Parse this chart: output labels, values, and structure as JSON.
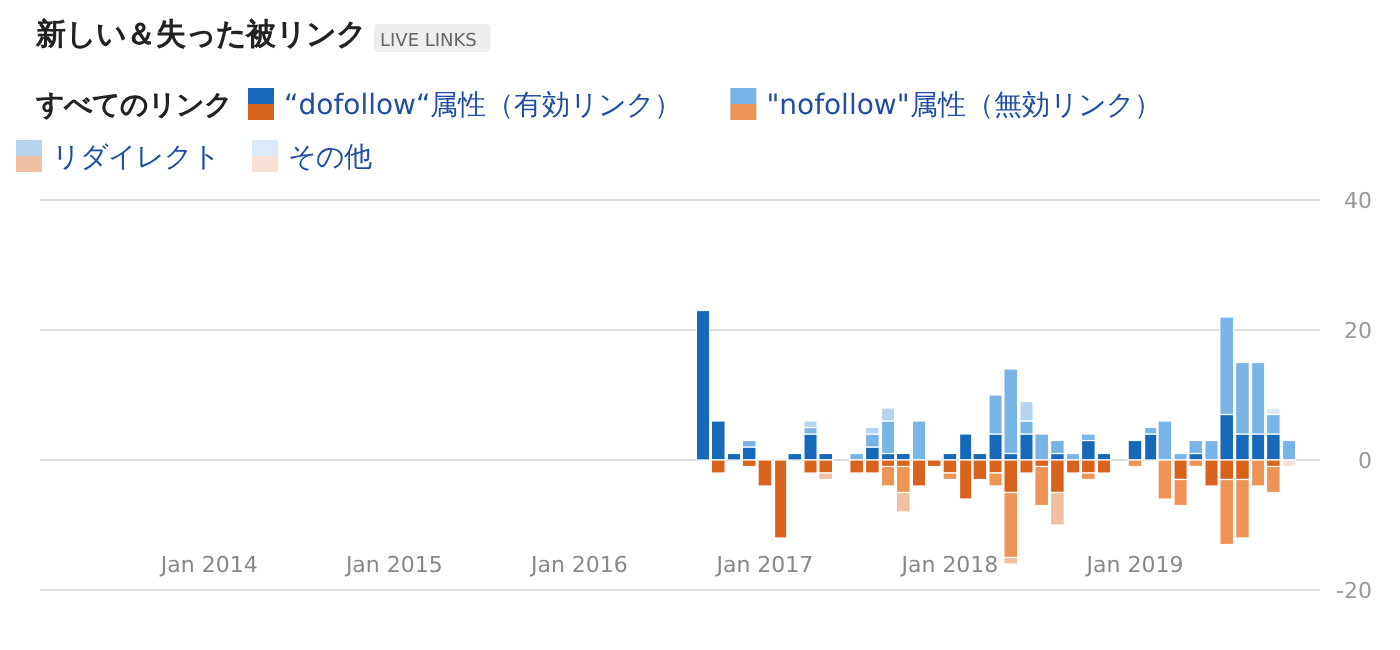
{
  "chart_data": {
    "type": "bar",
    "title": "新しい＆失った被リンク",
    "subtitle": "LIVE LINKS",
    "legend_title": "すべてのリンク",
    "legend": "top left",
    "stacked": true,
    "grid": "y",
    "x": [
      "2016-09",
      "2016-10",
      "2016-11",
      "2016-12",
      "2017-01",
      "2017-02",
      "2017-03",
      "2017-04",
      "2017-05",
      "2017-06",
      "2017-07",
      "2017-08",
      "2017-09",
      "2017-10",
      "2017-11",
      "2017-12",
      "2018-01",
      "2018-02",
      "2018-03",
      "2018-04",
      "2018-05",
      "2018-06",
      "2018-07",
      "2018-08",
      "2018-09",
      "2018-10",
      "2018-11",
      "2018-12",
      "2019-01",
      "2019-02",
      "2019-03",
      "2019-04",
      "2019-05",
      "2019-06",
      "2019-07",
      "2019-08",
      "2019-09",
      "2019-10",
      "2019-11"
    ],
    "xlim": [
      "2013-02",
      "2020-01"
    ],
    "xticks": [
      {
        "value": "2014-01",
        "label": "Jan 2014"
      },
      {
        "value": "2015-01",
        "label": "Jan 2015"
      },
      {
        "value": "2016-01",
        "label": "Jan 2016"
      },
      {
        "value": "2017-01",
        "label": "Jan 2017"
      },
      {
        "value": "2018-01",
        "label": "Jan 2018"
      },
      {
        "value": "2019-01",
        "label": "Jan 2019"
      }
    ],
    "ylim": [
      -20,
      40
    ],
    "yticks": [
      -20,
      0,
      20,
      40
    ],
    "series": [
      {
        "name": "“dofollow“属性（有効リンク）",
        "color": "#1668b8",
        "values": [
          23,
          6,
          1,
          2,
          0,
          0,
          1,
          4,
          1,
          0,
          0,
          2,
          1,
          1,
          0,
          0,
          1,
          4,
          1,
          4,
          1,
          4,
          0,
          1,
          0,
          3,
          1,
          0,
          3,
          4,
          0,
          0,
          1,
          0,
          7,
          4,
          4,
          4,
          0
        ]
      },
      {
        "name": "\"nofollow\"属性（無効リンク）",
        "color": "#79b4e6",
        "values": [
          0,
          0,
          0,
          1,
          0,
          0,
          0,
          1,
          0,
          0,
          1,
          2,
          5,
          0,
          6,
          0,
          0,
          0,
          0,
          6,
          13,
          2,
          4,
          2,
          1,
          1,
          0,
          0,
          0,
          1,
          6,
          1,
          2,
          3,
          15,
          11,
          11,
          3,
          3
        ]
      },
      {
        "name": "リダイレクト",
        "color": "#b5d4ef",
        "values": [
          0,
          0,
          0,
          0,
          0,
          0,
          0,
          1,
          0,
          0,
          0,
          1,
          2,
          0,
          0,
          0,
          0,
          0,
          0,
          0,
          0,
          3,
          0,
          0,
          0,
          0,
          0,
          0,
          0,
          0,
          0,
          0,
          0,
          0,
          0,
          0,
          0,
          0,
          0
        ]
      },
      {
        "name": "その他",
        "color": "#dce9f6",
        "values": [
          0,
          0,
          0,
          0,
          0,
          0,
          0,
          0,
          0,
          0,
          0,
          0,
          0,
          0,
          0,
          0,
          0,
          0,
          0,
          0,
          0,
          0,
          0,
          0,
          0,
          0,
          0,
          0,
          0,
          0,
          0,
          0,
          0,
          0,
          0,
          0,
          0,
          1,
          0
        ]
      },
      {
        "color": "#d9621c",
        "values": [
          0,
          -2,
          0,
          -1,
          -4,
          -12,
          0,
          -2,
          -2,
          0,
          -2,
          -2,
          -1,
          -1,
          -4,
          -1,
          -2,
          -6,
          -3,
          -2,
          -5,
          -2,
          -1,
          -5,
          -2,
          -2,
          -2,
          0,
          0,
          0,
          0,
          -3,
          0,
          -4,
          -3,
          -3,
          0,
          -1,
          0
        ]
      },
      {
        "color": "#ee9456",
        "values": [
          0,
          0,
          0,
          0,
          0,
          0,
          0,
          0,
          0,
          0,
          0,
          0,
          -3,
          -4,
          0,
          0,
          -1,
          0,
          0,
          -2,
          -10,
          0,
          -6,
          0,
          0,
          -1,
          0,
          0,
          -1,
          0,
          -6,
          -4,
          -1,
          0,
          -10,
          -9,
          -4,
          -4,
          0
        ]
      },
      {
        "color": "#efc0a2",
        "values": [
          0,
          0,
          0,
          0,
          0,
          0,
          0,
          0,
          -1,
          0,
          0,
          0,
          0,
          -3,
          0,
          0,
          0,
          0,
          0,
          0,
          -1,
          0,
          0,
          -5,
          0,
          0,
          0,
          0,
          0,
          0,
          0,
          0,
          0,
          0,
          0,
          0,
          0,
          0,
          0
        ]
      },
      {
        "color": "#f8e1d4",
        "values": [
          0,
          0,
          0,
          0,
          0,
          0,
          0,
          0,
          0,
          0,
          0,
          0,
          0,
          0,
          0,
          0,
          0,
          0,
          0,
          0,
          0,
          0,
          0,
          0,
          0,
          0,
          0,
          0,
          0,
          0,
          0,
          0,
          0,
          0,
          0,
          0,
          0,
          0,
          -1
        ]
      }
    ]
  }
}
